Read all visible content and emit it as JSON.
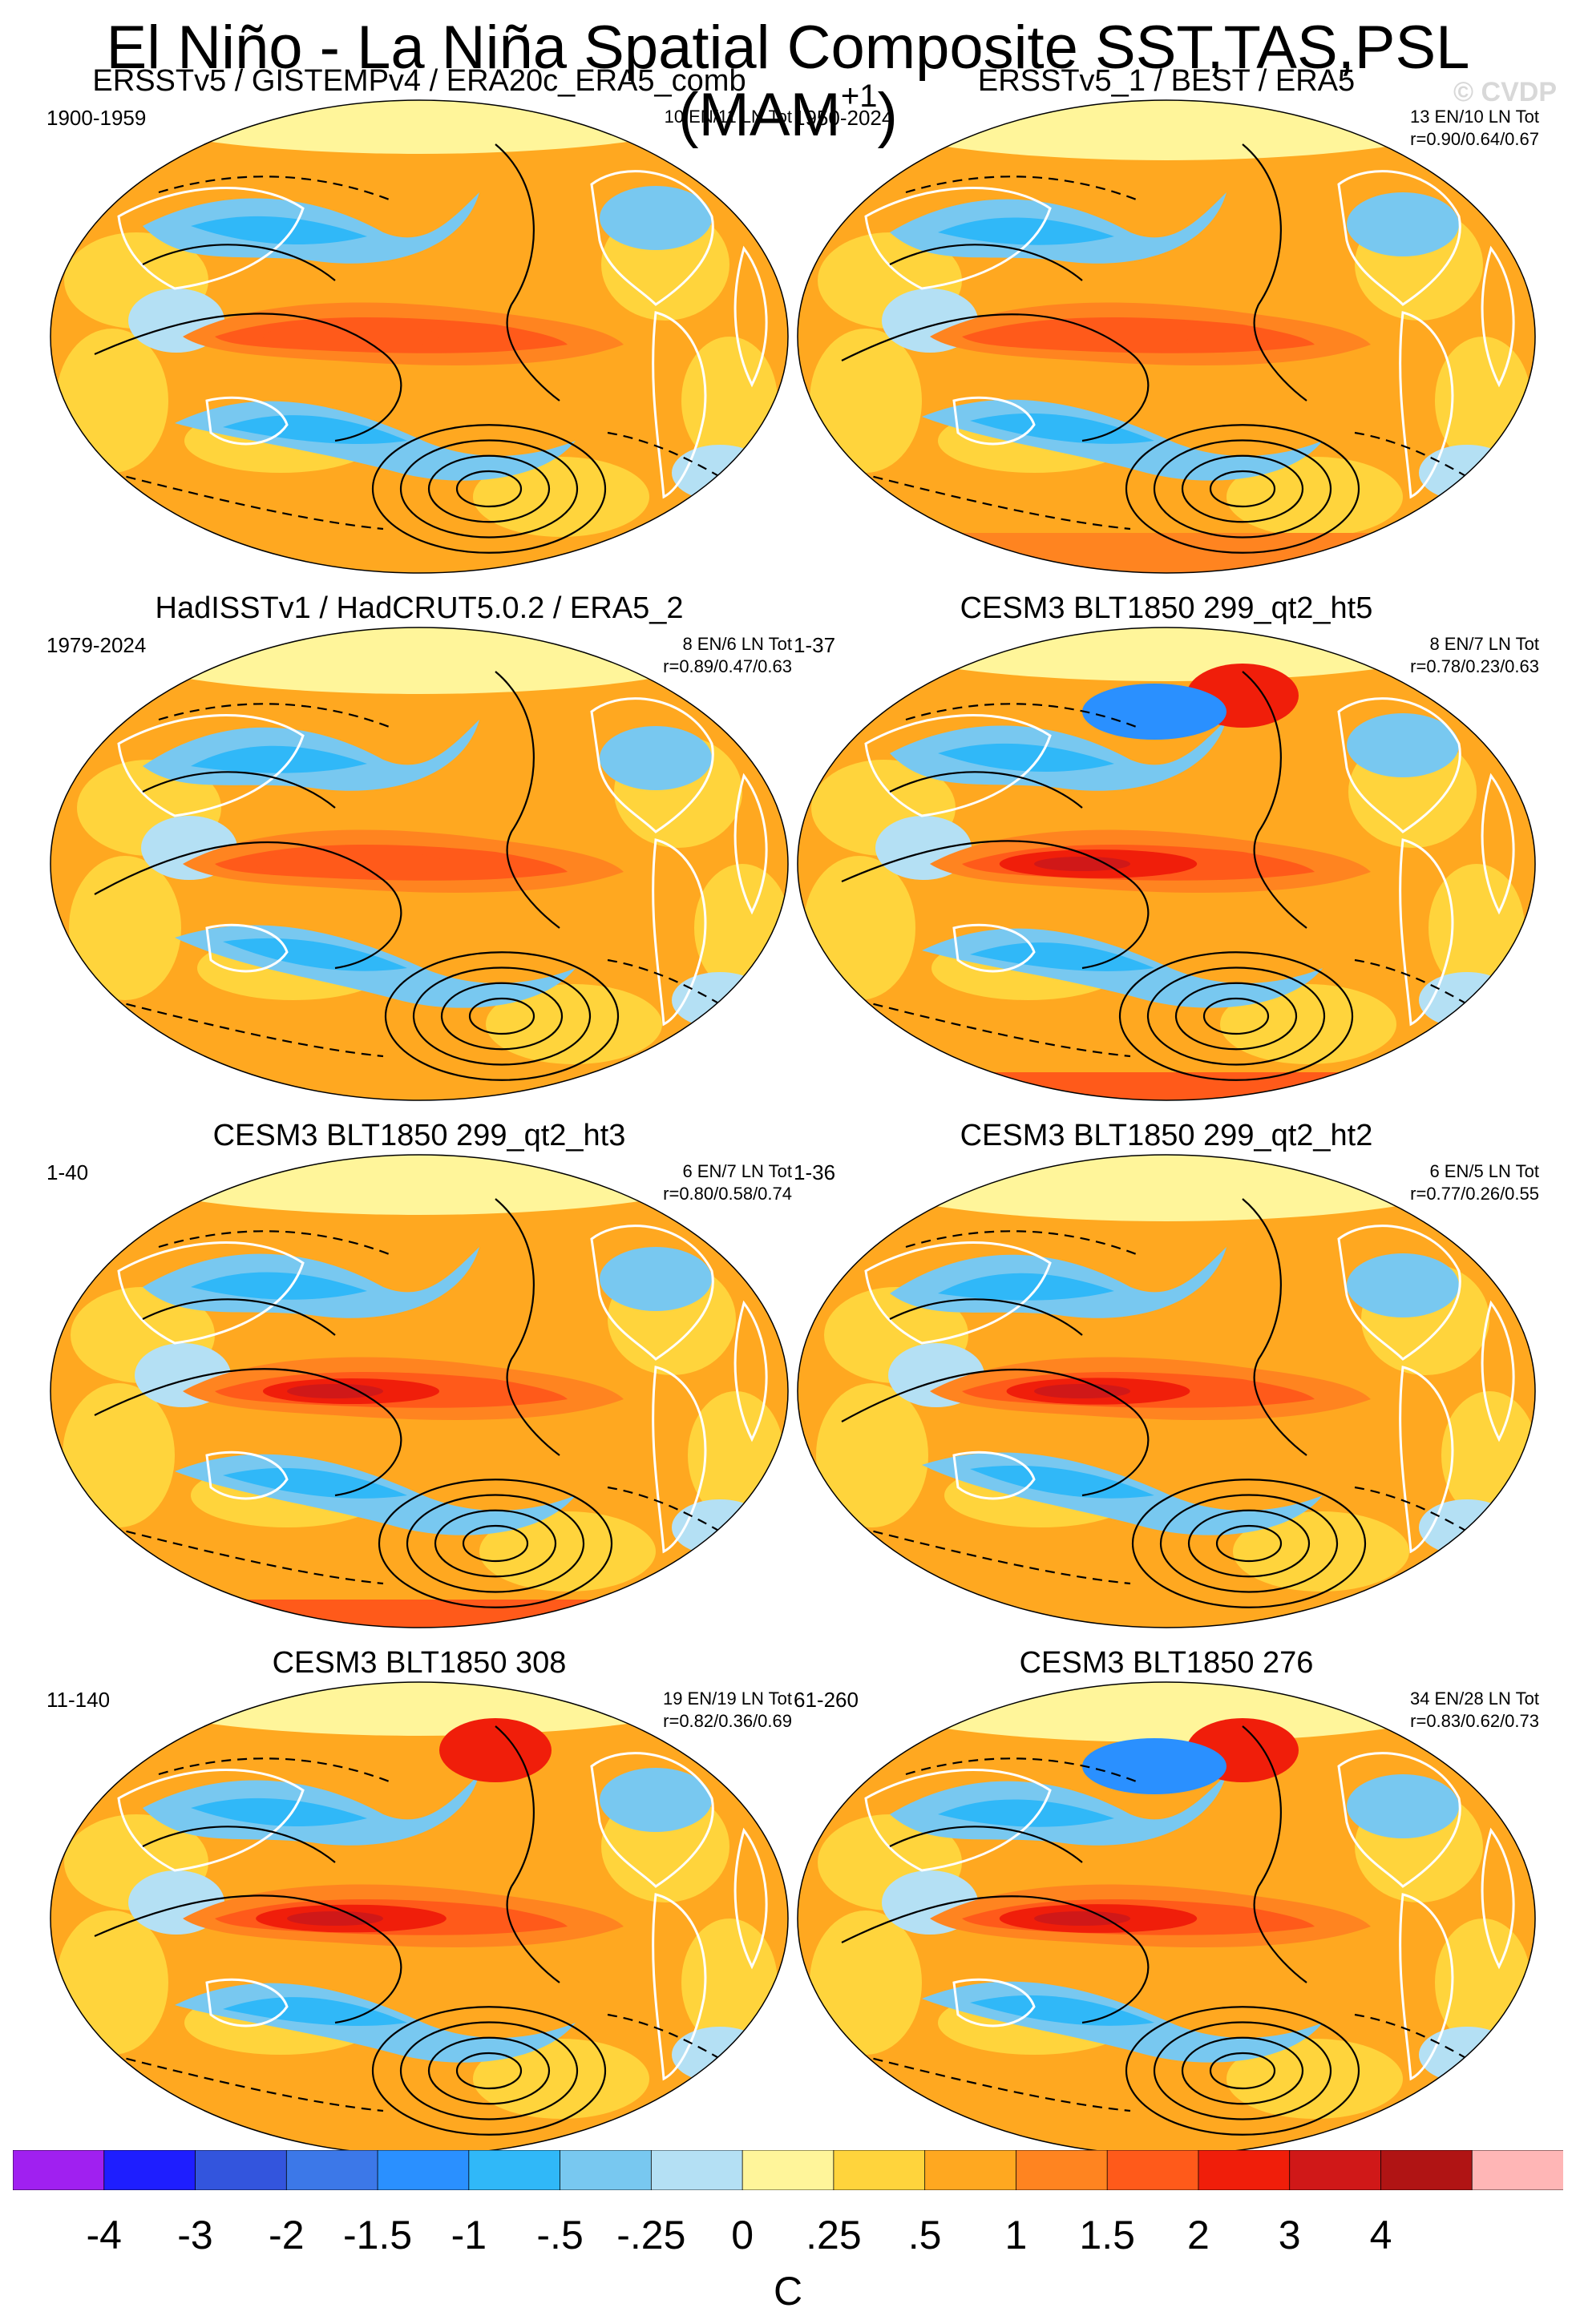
{
  "figure": {
    "title": "El Niño - La Niña Spatial Composite SST,TAS,PSL (MAM",
    "title_sup": "+1",
    "title_close": ")",
    "watermark": "© CVDP"
  },
  "panels": [
    {
      "title": "ERSSTv5 / GISTEMPv4 / ERA20c_ERA5_comb",
      "period": "1900-1959",
      "stats1": "10 EN/11 LN Tot",
      "stats2": "",
      "variant": 0
    },
    {
      "title": "ERSSTv5_1 / BEST / ERA5",
      "period": "1950-2024",
      "stats1": "13 EN/10 LN Tot",
      "stats2": "r=0.90/0.64/0.67",
      "variant": 1
    },
    {
      "title": "HadISSTv1 / HadCRUT5.0.2 / ERA5_2",
      "period": "1979-2024",
      "stats1": "8 EN/6 LN Tot",
      "stats2": "r=0.89/0.47/0.63",
      "variant": 2
    },
    {
      "title": "CESM3 BLT1850 299_qt2_ht5",
      "period": "1-37",
      "stats1": "8 EN/7 LN Tot",
      "stats2": "r=0.78/0.23/0.63",
      "variant": 3
    },
    {
      "title": "CESM3 BLT1850 299_qt2_ht3",
      "period": "1-40",
      "stats1": "6 EN/7 LN Tot",
      "stats2": "r=0.80/0.58/0.74",
      "variant": 4
    },
    {
      "title": "CESM3 BLT1850 299_qt2_ht2",
      "period": "1-36",
      "stats1": "6 EN/5 LN Tot",
      "stats2": "r=0.77/0.26/0.55",
      "variant": 5
    },
    {
      "title": "CESM3 BLT1850 308",
      "period": "11-140",
      "stats1": "19 EN/19 LN Tot",
      "stats2": "r=0.82/0.36/0.69",
      "variant": 6
    },
    {
      "title": "CESM3 BLT1850 276",
      "period": "61-260",
      "stats1": "34 EN/28 LN Tot",
      "stats2": "r=0.83/0.62/0.73",
      "variant": 7
    }
  ],
  "colorbar": {
    "colors": [
      "#a020f0",
      "#1e1eff",
      "#3355dd",
      "#3c78e8",
      "#2a90ff",
      "#30b8f8",
      "#78c8f0",
      "#b4e0f4",
      "#fff59a",
      "#ffd43c",
      "#ffa820",
      "#ff8420",
      "#ff5a1a",
      "#f01e0a",
      "#d01818",
      "#b01414",
      "#ffb6b6"
    ],
    "labels": [
      "-4",
      "-3",
      "-2",
      "-1.5",
      "-1",
      "-.5",
      "-.25",
      "0",
      ".25",
      ".5",
      "1",
      "1.5",
      "2",
      "3",
      "4"
    ],
    "units": "C"
  }
}
